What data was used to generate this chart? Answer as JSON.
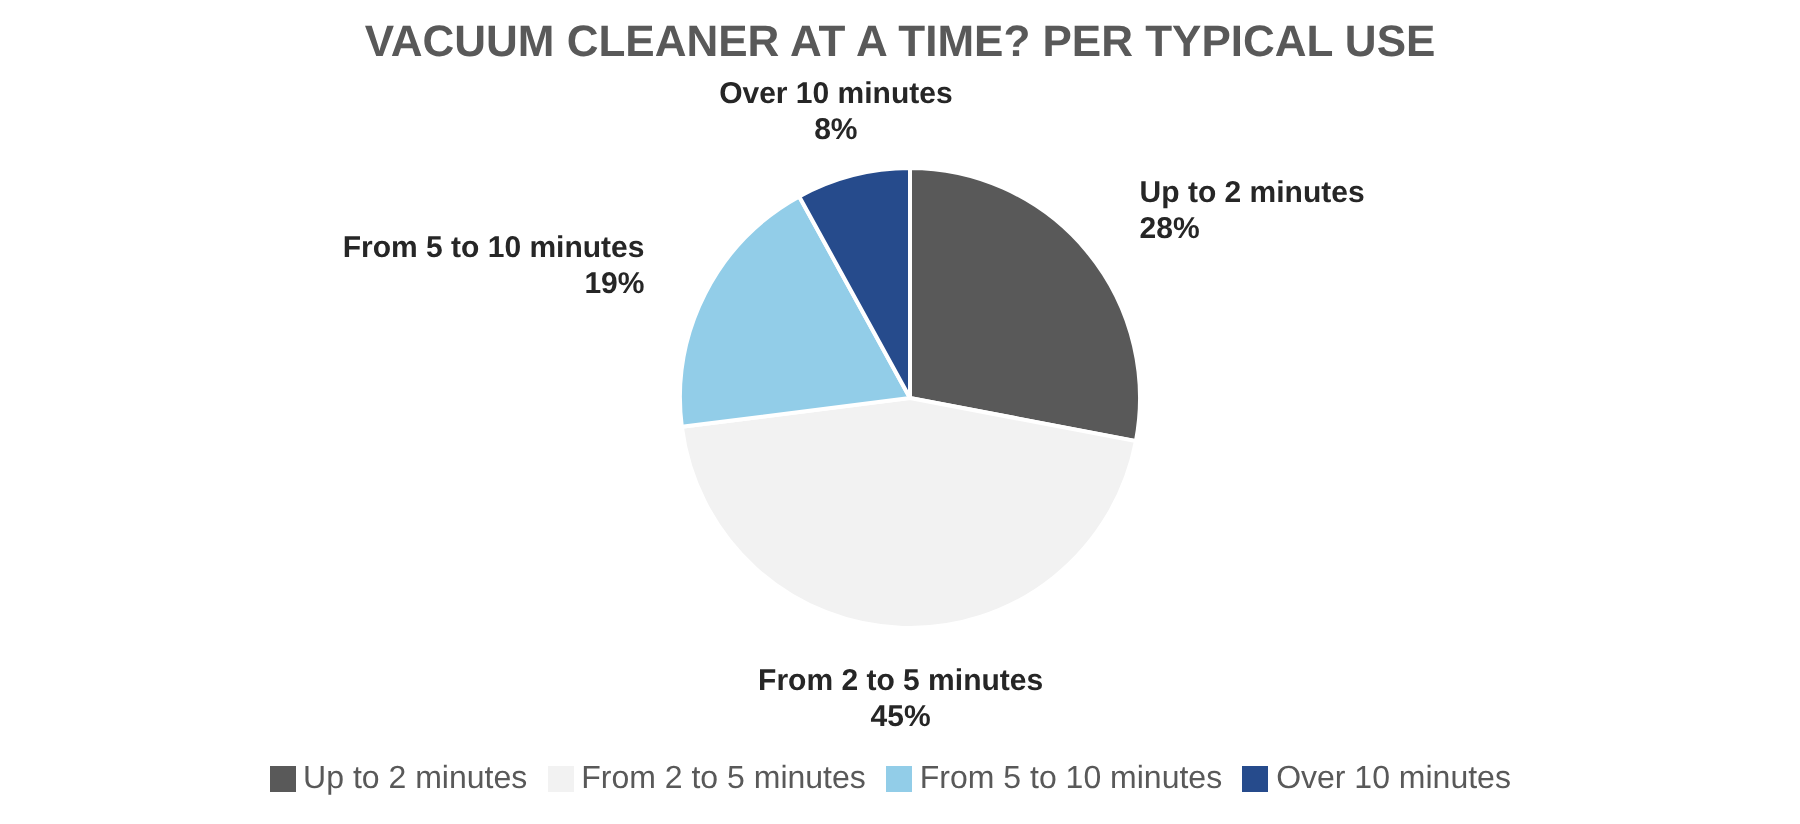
{
  "chart_data": {
    "type": "pie",
    "title": "VACUUM CLEANER AT A TIME? PER TYPICAL USE",
    "categories": [
      "Up to 2 minutes",
      "From 2 to 5 minutes",
      "From 5 to 10 minutes",
      "Over 10 minutes"
    ],
    "values": [
      28,
      45,
      19,
      8
    ],
    "value_labels": [
      "28%",
      "45%",
      "19%",
      "8%"
    ],
    "colors": [
      "#595959",
      "#f2f2f2",
      "#92cde8",
      "#264b8c"
    ],
    "legend": "bottom"
  }
}
